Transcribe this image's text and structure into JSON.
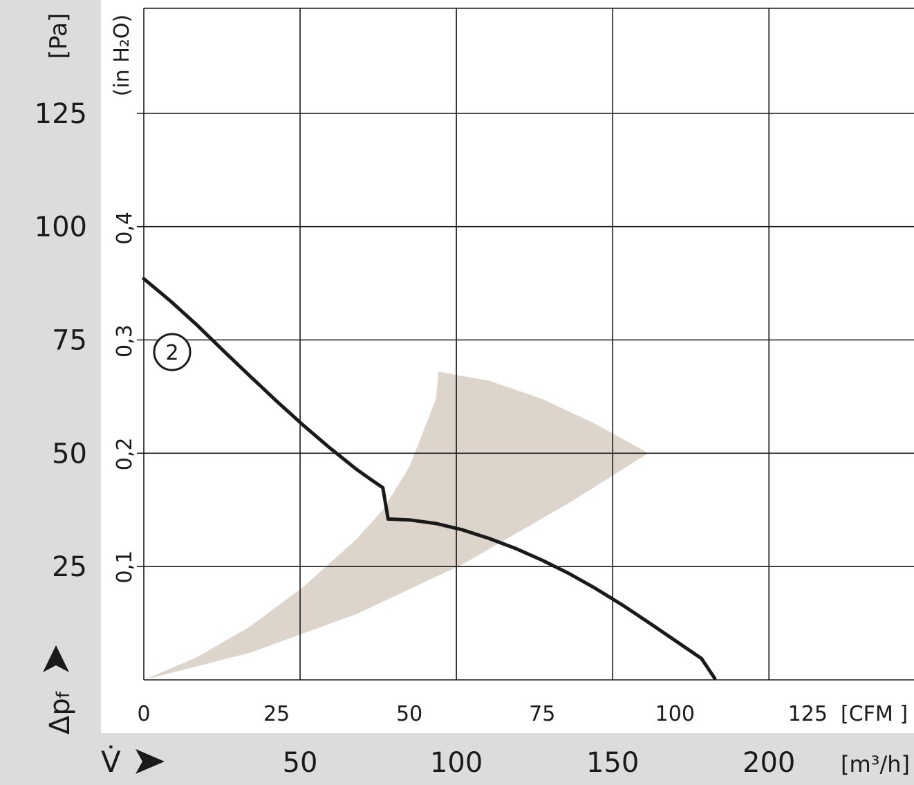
{
  "chart_data": {
    "type": "line",
    "title": "",
    "x_axis_cfm": {
      "unit_label": "[CFM ]",
      "ticks": [
        0,
        25,
        50,
        75,
        100,
        125
      ],
      "range": [
        0,
        145
      ]
    },
    "x_axis_m3h": {
      "symbol": "V̇",
      "unit_label": "[m³/h]",
      "ticks": [
        50,
        100,
        150,
        200
      ],
      "range": [
        0,
        246.4
      ]
    },
    "y_axis_pa": {
      "symbol": "Δp",
      "subscript": "f",
      "unit_label": "[Pa]",
      "ticks": [
        25,
        50,
        75,
        100,
        125
      ],
      "range": [
        0,
        150
      ]
    },
    "y_axis_inh2o": {
      "unit_label": "(in H₂O)",
      "ticks": [
        "0,1",
        "0,2",
        "0,3",
        "0,4"
      ],
      "tick_values": [
        0.1,
        0.2,
        0.3,
        0.4
      ],
      "range": [
        0,
        0.602
      ]
    },
    "grid": true,
    "series": [
      {
        "label": "2",
        "x_cfm": [
          0,
          5,
          10,
          15,
          20,
          25,
          30,
          35,
          40,
          43,
          45,
          46,
          50,
          55,
          60,
          65,
          70,
          75,
          80,
          85,
          90,
          95,
          100,
          105,
          107.5
        ],
        "y_pa": [
          88.5,
          83.6,
          78.3,
          72.6,
          67.0,
          61.5,
          56.2,
          51.2,
          46.5,
          44.0,
          42.4,
          35.5,
          35.3,
          34.5,
          33.1,
          31.2,
          29.0,
          26.4,
          23.5,
          20.2,
          16.6,
          12.7,
          8.7,
          4.7,
          0.3
        ]
      }
    ],
    "operating_range": {
      "upper_boundary_x_cfm": [
        0,
        10,
        20,
        30,
        40,
        45,
        50,
        55,
        55.5
      ],
      "upper_boundary_y_pa": [
        0,
        5,
        11.8,
        20.5,
        31.0,
        37.5,
        47.0,
        62.0,
        68.0
      ],
      "top_boundary_x_cfm": [
        55.5,
        65,
        75,
        85,
        95
      ],
      "top_boundary_y_pa": [
        68.0,
        66.0,
        62.0,
        56.5,
        50.0
      ],
      "lower_boundary_x_cfm": [
        95,
        80,
        60,
        40,
        20,
        0
      ],
      "lower_boundary_y_pa": [
        50.0,
        39.0,
        25.5,
        14.5,
        6.0,
        0
      ],
      "color": "#ddd5cc"
    },
    "colors": {
      "curve": "#1a1a1a",
      "grid": "#1a1a1a",
      "frame_band": "#dcdcdc",
      "background": "#ffffff"
    }
  }
}
